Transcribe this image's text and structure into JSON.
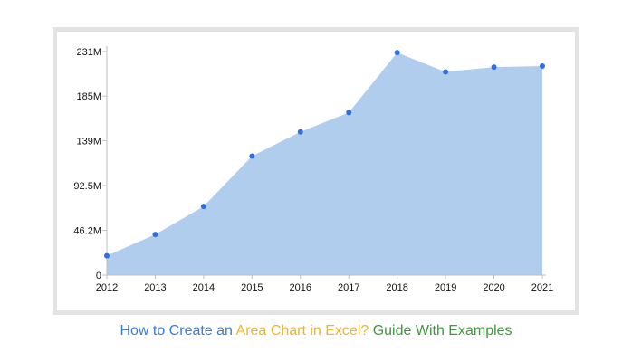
{
  "caption": {
    "part1": "How to Create an",
    "part2": "Area Chart in Excel?",
    "part3": "Guide With Examples",
    "colors": {
      "part1": "#3a7bd5",
      "part2": "#f0b429",
      "part3": "#3b9b3b"
    }
  },
  "colors": {
    "area_fill": "#b0cdee",
    "point": "#2f6fe0",
    "frame": "#e3e3e3"
  },
  "chart_data": {
    "type": "area",
    "title": "",
    "xlabel": "",
    "ylabel": "",
    "categories": [
      "2012",
      "2013",
      "2014",
      "2015",
      "2016",
      "2017",
      "2018",
      "2019",
      "2020",
      "2021"
    ],
    "values": [
      20000000,
      42000000,
      71000000,
      123000000,
      148000000,
      168000000,
      230000000,
      210000000,
      215000000,
      216000000
    ],
    "ylim": [
      0,
      231000000
    ],
    "y_ticks": [
      0,
      46200000,
      92500000,
      139000000,
      185000000,
      231000000
    ],
    "y_tick_labels": [
      "0",
      "46.2M",
      "92.5M",
      "139M",
      "185M",
      "231M"
    ],
    "grid": false,
    "legend": "none",
    "markers": true
  }
}
